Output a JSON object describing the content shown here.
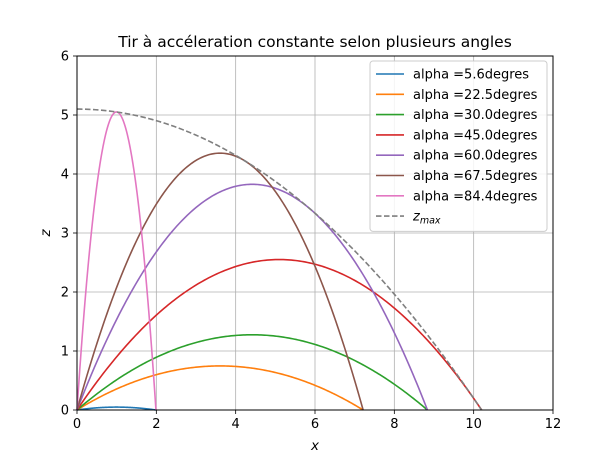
{
  "chart_data": {
    "type": "line",
    "title": "Tir à accéleration constante selon plusieurs angles",
    "xlabel": "x",
    "ylabel": "z",
    "xlim": [
      0,
      12
    ],
    "ylim": [
      0,
      6
    ],
    "xticks": [
      "0",
      "2",
      "4",
      "6",
      "8",
      "10",
      "12"
    ],
    "yticks": [
      "0",
      "1",
      "2",
      "3",
      "4",
      "5",
      "6"
    ],
    "grid": true,
    "legend_position": "top-right",
    "g": 2.5,
    "v0": 5.05,
    "series": [
      {
        "name": "alpha =5.6degres",
        "alpha_deg": 5.625,
        "color": "#1f77b4",
        "style": "solid"
      },
      {
        "name": "alpha =22.5degres",
        "alpha_deg": 22.5,
        "color": "#ff7f0e",
        "style": "solid"
      },
      {
        "name": "alpha =30.0degres",
        "alpha_deg": 30.0,
        "color": "#2ca02c",
        "style": "solid"
      },
      {
        "name": "alpha =45.0degres",
        "alpha_deg": 45.0,
        "color": "#d62728",
        "style": "solid"
      },
      {
        "name": "alpha =60.0degres",
        "alpha_deg": 60.0,
        "color": "#9467bd",
        "style": "solid"
      },
      {
        "name": "alpha =67.5degres",
        "alpha_deg": 67.5,
        "color": "#8c564b",
        "style": "solid"
      },
      {
        "name": "alpha =84.4degres",
        "alpha_deg": 84.375,
        "color": "#e377c2",
        "style": "solid"
      }
    ],
    "envelope": {
      "name_main": "z",
      "name_sub": "max",
      "color": "#7f7f7f",
      "style": "dashed",
      "z_at_0": 5.1,
      "x_at_0": 10.2
    }
  }
}
